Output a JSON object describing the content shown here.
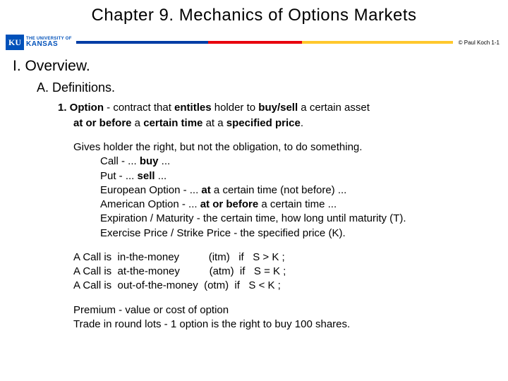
{
  "title": "Chapter 9.  Mechanics of Options Markets",
  "logo": {
    "mark": "KU",
    "line1": "THE UNIVERSITY OF",
    "line2": "KANSAS"
  },
  "copyright": "© Paul Koch 1-1",
  "divider_colors": {
    "blue": "#003da5",
    "red": "#e8000d",
    "yellow": "#ffc82d"
  },
  "outline": {
    "I": "I.   Overview.",
    "A": "A.   Definitions.",
    "one_prefix": "1.   Option",
    "one_rest": " -  contract that ",
    "one_b1": "entitles",
    "one_mid1": "  holder to  ",
    "one_b2": "buy/sell",
    "one_mid2": "  a certain asset",
    "one_l2_b1": "at or before",
    "one_l2_m1": "   a  ",
    "one_l2_b2": "certain time",
    "one_l2_m2": "   at a  ",
    "one_l2_b3": "specified price",
    "one_l2_end": "."
  },
  "para1": "Gives holder the right,  but not the obligation,  to do something.",
  "defs": {
    "call_pre": "Call   -  ...  ",
    "call_b": "buy",
    "call_post": "  ...",
    "put_pre": "Put    -  ...  ",
    "put_b": "sell",
    "put_post": "  ...",
    "eur_pre": "European Option -  ...  ",
    "eur_b": "at",
    "eur_post": "   a certain time  (not before)  ...",
    "amr_pre": "American Option -  ...  ",
    "amr_b": "at or before",
    "amr_post": "   a certain time  ...",
    "exp": "Expiration / Maturity -  the certain time,  how long until maturity (T).",
    "strike": "Exercise Price / Strike Price  -  the specified price  (K)."
  },
  "money": {
    "l1": "A Call is  in-the-money          (itm)   if   S > K ;",
    "l2": "A Call is  at-the-money          (atm)  if   S = K ;",
    "l3": "A Call is  out-of-the-money  (otm)  if   S < K ;"
  },
  "premium": "Premium -  value or cost of option",
  "roundlot": "Trade in round lots  -  1 option is the right to buy 100 shares."
}
